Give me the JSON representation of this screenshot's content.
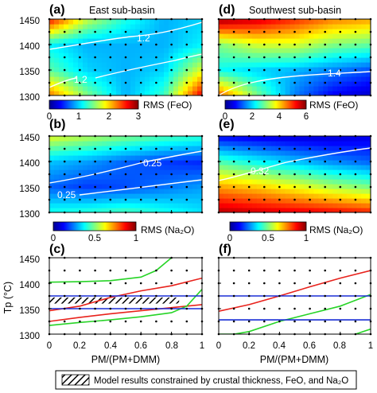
{
  "colors": {
    "jet": [
      "#00008f",
      "#0000ff",
      "#0080ff",
      "#00ffff",
      "#80ff80",
      "#ffff00",
      "#ff8000",
      "#ff0000",
      "#800000"
    ],
    "red_line": "#e8221c",
    "green_line": "#27d427",
    "blue_line": "#1a2fd6",
    "contour": "#ffffff"
  },
  "axes": {
    "tp_ticks": [
      "1450",
      "1400",
      "1350",
      "1300"
    ],
    "pm_ticks": [
      "0",
      "0.2",
      "0.4",
      "0.6",
      "0.8",
      "1"
    ],
    "ylabel": "Tp (°C)",
    "xlabel": "PM/(PM+DMM)"
  },
  "panels": {
    "a": {
      "letter": "(a)",
      "title": "East sub-basin",
      "contour_1": "1.2",
      "contour_2": "1.2"
    },
    "b": {
      "letter": "(b)",
      "contour_1": "0.25",
      "contour_2": "0.25"
    },
    "c": {
      "letter": "(c)"
    },
    "d": {
      "letter": "(d)",
      "title": "Southwest sub-basin",
      "contour_1": "1.4"
    },
    "e": {
      "letter": "(e)",
      "contour_1": "0.32"
    },
    "f": {
      "letter": "(f)"
    }
  },
  "colorbars": {
    "a": {
      "ticks": [
        "0",
        "1",
        "2",
        "3"
      ],
      "label": "RMS (FeO)"
    },
    "d": {
      "ticks": [
        "0",
        "2",
        "4",
        "6"
      ],
      "label": "RMS (FeO)"
    },
    "b": {
      "ticks": [
        "0",
        "0.5",
        "1"
      ],
      "label": "RMS (Na₂O)"
    },
    "e": {
      "ticks": [
        "0",
        "0.5",
        "1"
      ],
      "label": "RMS (Na₂O)"
    }
  },
  "legend": {
    "text": "Model results constrained by crustal thickness, FeO, and Na₂O"
  },
  "chart_data": [
    {
      "type": "heatmap",
      "panel": "a",
      "title": "East sub-basin",
      "xlabel": "",
      "ylabel": "",
      "xlim": [
        0,
        1
      ],
      "ylim": [
        1300,
        1450
      ],
      "colorbar": {
        "label": "RMS (FeO)",
        "range": [
          0,
          3
        ]
      },
      "contours": [
        {
          "level": 1.2
        },
        {
          "level": 1.2
        }
      ],
      "grid_rows": [
        1300,
        1350,
        1400,
        1450
      ],
      "grid_cols": [
        0,
        0.25,
        0.5,
        0.75,
        1
      ],
      "values": [
        [
          2.3,
          1.5,
          0.9,
          1.3,
          2.7
        ],
        [
          1.4,
          1.0,
          0.9,
          1.0,
          1.8
        ],
        [
          1.1,
          0.9,
          0.9,
          0.9,
          1.1
        ],
        [
          2.6,
          1.7,
          1.2,
          0.9,
          1.0
        ]
      ]
    },
    {
      "type": "heatmap",
      "panel": "b",
      "xlabel": "",
      "ylabel": "",
      "xlim": [
        0,
        1
      ],
      "ylim": [
        1300,
        1450
      ],
      "colorbar": {
        "label": "RMS (Na₂O)",
        "range": [
          0,
          1
        ]
      },
      "contours": [
        {
          "level": 0.25
        },
        {
          "level": 0.25
        }
      ],
      "grid_rows": [
        1300,
        1350,
        1400,
        1450
      ],
      "grid_cols": [
        0,
        0.25,
        0.5,
        0.75,
        1
      ],
      "values": [
        [
          0.4,
          0.42,
          0.45,
          0.4,
          0.35
        ],
        [
          0.22,
          0.18,
          0.2,
          0.24,
          0.28
        ],
        [
          0.32,
          0.28,
          0.22,
          0.18,
          0.16
        ],
        [
          0.6,
          0.55,
          0.5,
          0.45,
          0.42
        ]
      ]
    },
    {
      "type": "line",
      "panel": "c",
      "xlabel": "PM/(PM+DMM)",
      "ylabel": "Tp (°C)",
      "xlim": [
        0,
        1
      ],
      "ylim": [
        1300,
        1450
      ],
      "series": [
        {
          "color": "red",
          "x": [
            0,
            0.2,
            0.4,
            0.6,
            0.8,
            1
          ],
          "y": [
            1346,
            1355,
            1372,
            1385,
            1395,
            1410
          ]
        },
        {
          "color": "red",
          "x": [
            0,
            0.2,
            0.4,
            0.6,
            0.8,
            1
          ],
          "y": [
            1325,
            1333,
            1340,
            1346,
            1352,
            1358
          ]
        },
        {
          "color": "green",
          "x": [
            0,
            0.2,
            0.4,
            0.6,
            0.7,
            0.8
          ],
          "y": [
            1402,
            1403,
            1405,
            1412,
            1425,
            1450
          ]
        },
        {
          "color": "green",
          "x": [
            0,
            0.2,
            0.4,
            0.6,
            0.8,
            0.9,
            1
          ],
          "y": [
            1317,
            1323,
            1328,
            1334,
            1342,
            1355,
            1388
          ]
        },
        {
          "color": "blue",
          "x": [
            0,
            1
          ],
          "y": [
            1375,
            1375
          ]
        },
        {
          "color": "blue",
          "x": [
            0,
            1
          ],
          "y": [
            1350,
            1350
          ]
        }
      ],
      "shaded_region": {
        "x": [
          0,
          0.85
        ],
        "y": [
          1360,
          1372
        ]
      }
    },
    {
      "type": "heatmap",
      "panel": "d",
      "title": "Southwest sub-basin",
      "xlabel": "",
      "ylabel": "",
      "xlim": [
        0,
        1
      ],
      "ylim": [
        1300,
        1450
      ],
      "colorbar": {
        "label": "RMS (FeO)",
        "range": [
          0,
          6
        ]
      },
      "contours": [
        {
          "level": 1.4
        }
      ],
      "grid_rows": [
        1300,
        1350,
        1400,
        1450
      ],
      "grid_cols": [
        0,
        0.25,
        0.5,
        0.75,
        1
      ],
      "values": [
        [
          4.8,
          3.0,
          1.5,
          0.7,
          0.4
        ],
        [
          2.3,
          2.0,
          1.8,
          1.5,
          1.2
        ],
        [
          3.0,
          3.5,
          3.5,
          3.0,
          2.8
        ],
        [
          5.8,
          5.5,
          5.0,
          4.5,
          4.3
        ]
      ]
    },
    {
      "type": "heatmap",
      "panel": "e",
      "xlabel": "",
      "ylabel": "",
      "xlim": [
        0,
        1
      ],
      "ylim": [
        1300,
        1450
      ],
      "colorbar": {
        "label": "RMS (Na₂O)",
        "range": [
          0,
          1
        ]
      },
      "contours": [
        {
          "level": 0.32
        }
      ],
      "grid_rows": [
        1300,
        1350,
        1400,
        1450
      ],
      "grid_cols": [
        0,
        0.25,
        0.5,
        0.75,
        1
      ],
      "values": [
        [
          0.95,
          0.92,
          0.9,
          0.88,
          0.85
        ],
        [
          0.72,
          0.68,
          0.62,
          0.55,
          0.5
        ],
        [
          0.45,
          0.38,
          0.32,
          0.26,
          0.22
        ],
        [
          0.12,
          0.1,
          0.08,
          0.08,
          0.1
        ]
      ]
    },
    {
      "type": "line",
      "panel": "f",
      "xlabel": "PM/(PM+DMM)",
      "ylabel": "",
      "xlim": [
        0,
        1
      ],
      "ylim": [
        1300,
        1450
      ],
      "series": [
        {
          "color": "red",
          "x": [
            0,
            0.2,
            0.4,
            0.6,
            0.8,
            1
          ],
          "y": [
            1345,
            1358,
            1375,
            1393,
            1410,
            1425
          ]
        },
        {
          "color": "green",
          "x": [
            0,
            0.1,
            0.2,
            0.4,
            0.6,
            0.8,
            1
          ],
          "y": [
            1300,
            1300,
            1305,
            1325,
            1340,
            1355,
            1378
          ]
        },
        {
          "color": "green",
          "x": [
            0.9,
            1
          ],
          "y": [
            1300,
            1310
          ]
        },
        {
          "color": "blue",
          "x": [
            0,
            1
          ],
          "y": [
            1375,
            1375
          ]
        },
        {
          "color": "blue",
          "x": [
            0,
            1
          ],
          "y": [
            1328,
            1328
          ]
        }
      ]
    }
  ]
}
